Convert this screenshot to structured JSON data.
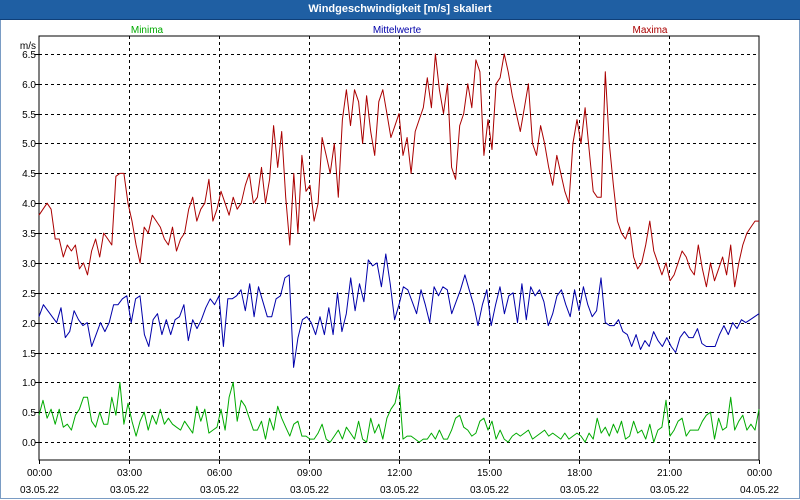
{
  "window": {
    "title": "Windgeschwindigkeit [m/s] skaliert"
  },
  "chart_data": {
    "type": "line",
    "title": "Windgeschwindigkeit [m/s] skaliert",
    "ylabel": "m/s",
    "ylim": [
      -0.3,
      6.8
    ],
    "yticks": [
      "6.5",
      "6.0",
      "5.5",
      "5.0",
      "4.5",
      "4.0",
      "3.5",
      "3.0",
      "2.5",
      "2.0",
      "1.5",
      "1.0",
      "0.5",
      "0.0"
    ],
    "xlim": [
      0,
      24
    ],
    "xticks": [
      {
        "time": "00:00",
        "date": "03.05.22"
      },
      {
        "time": "03:00",
        "date": "03.05.22"
      },
      {
        "time": "06:00",
        "date": "03.05.22"
      },
      {
        "time": "09:00",
        "date": "03.05.22"
      },
      {
        "time": "12:00",
        "date": "03.05.22"
      },
      {
        "time": "15:00",
        "date": "03.05.22"
      },
      {
        "time": "18:00",
        "date": "03.05.22"
      },
      {
        "time": "21:00",
        "date": "03.05.22"
      },
      {
        "time": "00:00",
        "date": "04.05.22"
      }
    ],
    "grid": true,
    "legend_position": "top",
    "series": [
      {
        "name": "Minima",
        "color": "#00aa00",
        "values": [
          0.45,
          0.7,
          0.4,
          0.55,
          0.3,
          0.55,
          0.25,
          0.3,
          0.2,
          0.45,
          0.55,
          0.75,
          0.75,
          0.35,
          0.25,
          0.5,
          0.3,
          0.3,
          0.75,
          0.45,
          1.0,
          0.3,
          0.65,
          0.35,
          0.1,
          0.35,
          0.5,
          0.2,
          0.45,
          0.3,
          0.55,
          0.3,
          0.4,
          0.3,
          0.25,
          0.2,
          0.35,
          0.25,
          0.15,
          0.6,
          0.35,
          0.55,
          0.15,
          0.2,
          0.25,
          0.55,
          0.2,
          0.75,
          1.0,
          0.35,
          0.7,
          0.6,
          0.4,
          0.2,
          0.2,
          0.35,
          0.05,
          0.4,
          0.2,
          0.6,
          0.4,
          0.25,
          0.1,
          0.3,
          0.35,
          0.1,
          0.1,
          0.05,
          0.05,
          0.15,
          0.3,
          0.05,
          0.0,
          0.1,
          0.2,
          0.05,
          0.25,
          0.15,
          0.05,
          0.35,
          0.05,
          0.0,
          0.4,
          0.15,
          0.3,
          0.05,
          0.4,
          0.55,
          0.65,
          0.95,
          0.05,
          0.1,
          0.1,
          0.05,
          0.0,
          0.05,
          0.05,
          0.15,
          0.05,
          0.2,
          0.05,
          0.05,
          0.2,
          0.4,
          0.45,
          0.25,
          0.2,
          0.1,
          0.15,
          0.35,
          0.4,
          0.2,
          0.35,
          0.05,
          0.2,
          0.05,
          0.0,
          0.1,
          0.15,
          0.1,
          0.15,
          0.2,
          0.05,
          0.1,
          0.15,
          0.2,
          0.1,
          0.15,
          0.1,
          0.05,
          0.15,
          0.05,
          0.1,
          0.15,
          0.1,
          0.0,
          0.15,
          0.05,
          0.4,
          0.15,
          0.25,
          0.1,
          0.3,
          0.15,
          0.35,
          0.05,
          0.1,
          0.35,
          0.15,
          0.2,
          0.05,
          0.3,
          0.0,
          0.2,
          0.25,
          0.7,
          0.1,
          0.2,
          0.35,
          0.4,
          0.1,
          0.2,
          0.2,
          0.2,
          0.35,
          0.45,
          0.5,
          0.05,
          0.4,
          0.2,
          0.25,
          0.75,
          0.2,
          0.35,
          0.45,
          0.2,
          0.3,
          0.2,
          0.55
        ]
      },
      {
        "name": "Mittelwerte",
        "color": "#0000aa",
        "values": [
          2.1,
          2.3,
          2.2,
          2.1,
          2.0,
          2.25,
          1.75,
          1.85,
          2.2,
          2.05,
          1.95,
          2.0,
          1.6,
          1.8,
          2.0,
          1.85,
          2.0,
          2.3,
          2.3,
          2.4,
          2.45,
          2.0,
          2.4,
          2.45,
          1.8,
          1.6,
          2.05,
          2.15,
          1.8,
          2.05,
          1.8,
          2.05,
          2.1,
          2.3,
          1.7,
          2.05,
          1.9,
          2.05,
          2.25,
          2.4,
          2.3,
          2.45,
          1.6,
          2.4,
          2.4,
          2.45,
          2.55,
          2.2,
          2.65,
          2.1,
          2.6,
          2.35,
          2.1,
          2.1,
          2.4,
          2.45,
          2.75,
          2.8,
          1.25,
          1.75,
          2.05,
          2.1,
          2.0,
          1.8,
          2.1,
          1.8,
          2.25,
          1.8,
          2.5,
          1.85,
          2.15,
          2.75,
          2.2,
          2.65,
          2.35,
          3.05,
          2.95,
          3.0,
          2.6,
          3.15,
          2.65,
          2.05,
          2.3,
          2.6,
          2.55,
          2.35,
          2.15,
          2.55,
          2.3,
          2.0,
          2.6,
          2.45,
          2.6,
          2.55,
          2.15,
          2.35,
          2.55,
          2.8,
          2.55,
          2.3,
          1.95,
          2.3,
          2.55,
          1.95,
          2.3,
          2.6,
          2.15,
          2.45,
          2.5,
          2.0,
          2.65,
          2.05,
          2.6,
          2.45,
          2.55,
          2.35,
          1.95,
          2.15,
          2.45,
          2.55,
          2.3,
          2.1,
          2.55,
          2.2,
          2.6,
          2.3,
          2.1,
          2.2,
          2.75,
          2.0,
          1.95,
          1.95,
          2.05,
          1.85,
          1.8,
          1.6,
          1.8,
          1.55,
          1.7,
          1.6,
          1.85,
          1.7,
          1.6,
          1.75,
          1.6,
          1.5,
          1.75,
          1.85,
          1.75,
          1.75,
          1.9,
          1.65,
          1.6,
          1.6,
          1.6,
          1.8,
          1.95,
          1.8,
          2.0,
          1.9,
          2.05,
          2.0,
          2.05,
          2.1,
          2.15
        ]
      },
      {
        "name": "Maxima",
        "color": "#aa0000",
        "values": [
          3.8,
          3.9,
          4.0,
          3.9,
          3.4,
          3.4,
          3.1,
          3.3,
          3.2,
          3.3,
          2.9,
          3.0,
          2.8,
          3.2,
          3.4,
          3.1,
          3.5,
          3.4,
          3.3,
          4.45,
          4.5,
          4.5,
          4.0,
          3.7,
          3.3,
          3.0,
          3.6,
          3.5,
          3.8,
          3.7,
          3.6,
          3.4,
          3.3,
          3.6,
          3.2,
          3.4,
          3.5,
          3.9,
          4.1,
          3.7,
          3.9,
          4.0,
          4.4,
          3.7,
          3.9,
          4.2,
          4.0,
          3.8,
          4.1,
          3.9,
          4.0,
          4.3,
          4.5,
          4.0,
          4.1,
          4.6,
          4.0,
          4.4,
          5.3,
          4.6,
          5.2,
          4.1,
          3.3,
          4.5,
          3.5,
          4.8,
          4.2,
          4.3,
          3.7,
          4.0,
          5.1,
          4.8,
          4.5,
          5.0,
          4.1,
          5.4,
          5.9,
          5.3,
          5.9,
          5.7,
          5.0,
          5.8,
          5.2,
          4.8,
          5.7,
          5.9,
          5.5,
          5.1,
          5.3,
          5.5,
          4.8,
          5.1,
          4.5,
          5.2,
          5.4,
          5.6,
          6.1,
          5.6,
          6.5,
          5.9,
          5.5,
          6.0,
          4.6,
          4.4,
          5.3,
          5.5,
          6.0,
          5.6,
          6.4,
          6.2,
          4.8,
          5.4,
          4.9,
          6.0,
          6.1,
          6.5,
          6.2,
          5.8,
          5.5,
          5.2,
          5.6,
          6.0,
          5.0,
          4.8,
          5.3,
          5.0,
          4.6,
          4.3,
          4.8,
          4.5,
          4.2,
          4.0,
          5.0,
          5.4,
          5.0,
          5.6,
          4.9,
          4.2,
          4.1,
          4.1,
          6.2,
          5.0,
          4.3,
          3.7,
          3.5,
          3.4,
          3.6,
          3.1,
          2.9,
          3.0,
          3.3,
          3.7,
          3.2,
          3.0,
          2.8,
          3.0,
          2.7,
          2.8,
          3.0,
          3.2,
          3.1,
          2.9,
          2.8,
          3.3,
          2.9,
          2.6,
          3.0,
          2.7,
          2.9,
          3.1,
          2.8,
          3.3,
          2.6,
          3.0,
          3.3,
          3.5,
          3.6,
          3.7,
          3.7
        ]
      }
    ]
  }
}
